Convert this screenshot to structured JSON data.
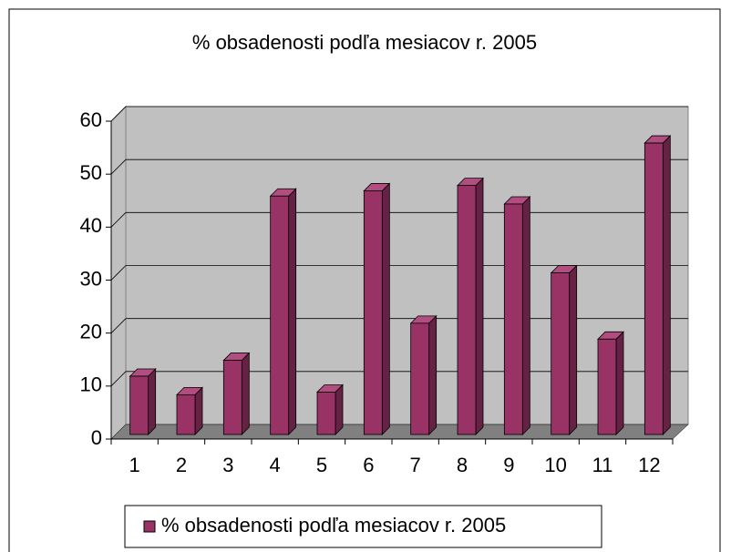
{
  "chart_data": {
    "type": "bar",
    "title": "% obsadenosti podľa mesiacov r. 2005",
    "categories": [
      "1",
      "2",
      "3",
      "4",
      "5",
      "6",
      "7",
      "8",
      "9",
      "10",
      "11",
      "12"
    ],
    "series": [
      {
        "name": "% obsadenosti podľa mesiacov r. 2005",
        "color": "#993366",
        "values": [
          11,
          7.5,
          14,
          45,
          8,
          46,
          21,
          47,
          43.5,
          30.5,
          18,
          55
        ]
      }
    ],
    "ylim": [
      0,
      60
    ],
    "yticks": [
      0,
      10,
      20,
      30,
      40,
      50,
      60
    ],
    "grid": true,
    "legend": "bottom"
  }
}
